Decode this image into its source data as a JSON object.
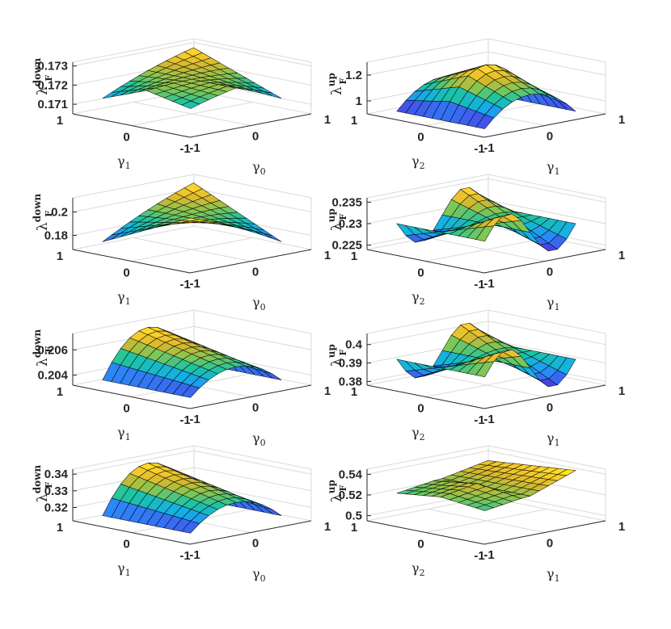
{
  "figure": {
    "colormap": [
      "#3e26a8",
      "#4748e9",
      "#2c87f7",
      "#13b0e4",
      "#1ec4a0",
      "#82c654",
      "#d6b82e",
      "#fcce2e",
      "#f9fb15"
    ],
    "edge_color": "#000000",
    "box_color": "#dadada"
  },
  "chart_data": [
    {
      "type": "surface",
      "z_label": {
        "symbol": "λ",
        "sub": "F",
        "sup": "down"
      },
      "axis_a_label": {
        "symbol": "γ",
        "sub": "1"
      },
      "axis_b_label": {
        "symbol": "γ",
        "sub": "0"
      },
      "axis_a_ticks": [
        "1",
        "0",
        "-1"
      ],
      "axis_b_ticks": [
        "-1",
        "0",
        "1"
      ],
      "z_ticks": [
        {
          "v": 0.173,
          "t": "0.173"
        },
        {
          "v": 0.172,
          "t": "0.172"
        },
        {
          "v": 0.171,
          "t": "0.171"
        }
      ],
      "zlim": [
        0.1705,
        0.1732
      ],
      "shape": "saddle_down"
    },
    {
      "type": "surface",
      "z_label": {
        "symbol": "λ",
        "sub": "F",
        "sup": "up"
      },
      "axis_a_label": {
        "symbol": "γ",
        "sub": "2"
      },
      "axis_b_label": {
        "symbol": "γ",
        "sub": "1"
      },
      "axis_a_ticks": [
        "1",
        "0",
        "-1"
      ],
      "axis_b_ticks": [
        "-1",
        "0",
        "1"
      ],
      "z_ticks": [
        {
          "v": 1.2,
          "t": "1.2"
        },
        {
          "v": 1,
          "t": "1"
        }
      ],
      "zlim": [
        0.9,
        1.3
      ],
      "shape": "ridge_a"
    },
    {
      "type": "surface",
      "z_label": {
        "symbol": "λ",
        "sub": "F",
        "sup": "down"
      },
      "axis_a_label": {
        "symbol": "γ",
        "sub": "1"
      },
      "axis_b_label": {
        "symbol": "γ",
        "sub": "0"
      },
      "axis_a_ticks": [
        "1",
        "0",
        "-1"
      ],
      "axis_b_ticks": [
        "-1",
        "0",
        "1"
      ],
      "z_ticks": [
        {
          "v": 0.2,
          "t": "0.2"
        },
        {
          "v": 0.18,
          "t": "0.18"
        }
      ],
      "zlim": [
        0.168,
        0.212
      ],
      "shape": "saddle_peak"
    },
    {
      "type": "surface",
      "z_label": {
        "symbol": "λ",
        "sub": "F",
        "sup": "up"
      },
      "axis_a_label": {
        "symbol": "γ",
        "sub": "2"
      },
      "axis_b_label": {
        "symbol": "γ",
        "sub": "1"
      },
      "axis_a_ticks": [
        "1",
        "0",
        "-1"
      ],
      "axis_b_ticks": [
        "-1",
        "0",
        "1"
      ],
      "z_ticks": [
        {
          "v": 0.235,
          "t": "0.235"
        },
        {
          "v": 0.23,
          "t": "0.23"
        },
        {
          "v": 0.225,
          "t": "0.225"
        }
      ],
      "zlim": [
        0.224,
        0.236
      ],
      "shape": "saddle_wave"
    },
    {
      "type": "surface",
      "z_label": {
        "symbol": "λ",
        "sub": "F",
        "sup": "down"
      },
      "axis_a_label": {
        "symbol": "γ",
        "sub": "1"
      },
      "axis_b_label": {
        "symbol": "γ",
        "sub": "0"
      },
      "axis_a_ticks": [
        "1",
        "0",
        "-1"
      ],
      "axis_b_ticks": [
        "-1",
        "0",
        "1"
      ],
      "z_ticks": [
        {
          "v": 0.206,
          "t": "0.206"
        },
        {
          "v": 0.204,
          "t": "0.204"
        }
      ],
      "zlim": [
        0.2032,
        0.2073
      ],
      "shape": "ridge_b"
    },
    {
      "type": "surface",
      "z_label": {
        "symbol": "λ",
        "sub": "F",
        "sup": "up"
      },
      "axis_a_label": {
        "symbol": "γ",
        "sub": "2"
      },
      "axis_b_label": {
        "symbol": "γ",
        "sub": "1"
      },
      "axis_a_ticks": [
        "1",
        "0",
        "-1"
      ],
      "axis_b_ticks": [
        "-1",
        "0",
        "1"
      ],
      "z_ticks": [
        {
          "v": 0.4,
          "t": "0.4"
        },
        {
          "v": 0.39,
          "t": "0.39"
        },
        {
          "v": 0.38,
          "t": "0.38"
        }
      ],
      "zlim": [
        0.378,
        0.406
      ],
      "shape": "saddle_wave"
    },
    {
      "type": "surface",
      "z_label": {
        "symbol": "λ",
        "sub": "F",
        "sup": "down"
      },
      "axis_a_label": {
        "symbol": "γ",
        "sub": "1"
      },
      "axis_b_label": {
        "symbol": "γ",
        "sub": "0"
      },
      "axis_a_ticks": [
        "1",
        "0",
        "-1"
      ],
      "axis_b_ticks": [
        "-1",
        "0",
        "1"
      ],
      "z_ticks": [
        {
          "v": 0.34,
          "t": "0.34"
        },
        {
          "v": 0.33,
          "t": "0.33"
        },
        {
          "v": 0.32,
          "t": "0.32"
        }
      ],
      "zlim": [
        0.312,
        0.343
      ],
      "shape": "ridge_b"
    },
    {
      "type": "surface",
      "z_label": {
        "symbol": "λ",
        "sub": "F",
        "sup": "up"
      },
      "axis_a_label": {
        "symbol": "γ",
        "sub": "2"
      },
      "axis_b_label": {
        "symbol": "γ",
        "sub": "1"
      },
      "axis_a_ticks": [
        "1",
        "0",
        "-1"
      ],
      "axis_b_ticks": [
        "-1",
        "0",
        "1"
      ],
      "z_ticks": [
        {
          "v": 0.54,
          "t": "0.54"
        },
        {
          "v": 0.52,
          "t": "0.52"
        },
        {
          "v": 0.5,
          "t": "0.5"
        }
      ],
      "zlim": [
        0.495,
        0.545
      ],
      "shape": "tent"
    }
  ]
}
